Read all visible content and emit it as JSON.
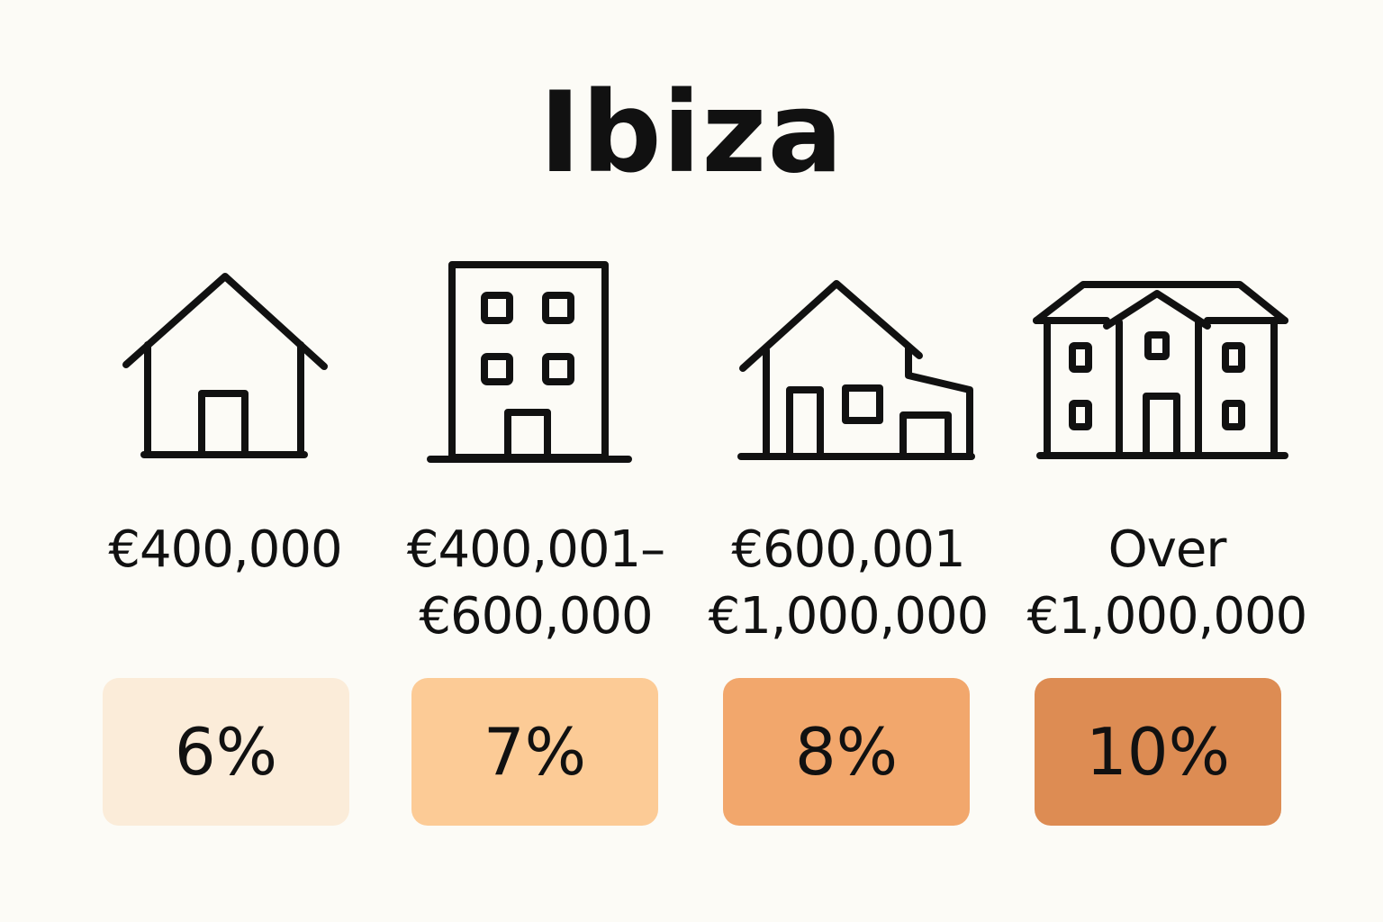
{
  "title": "Ibiza",
  "tiers": [
    {
      "icon": "house-icon",
      "price_lines": [
        "€400,000"
      ],
      "rate": "6%",
      "rate_color": "#fbecd9"
    },
    {
      "icon": "apartment-building-icon",
      "price_lines": [
        "€400,001–",
        "€600,000"
      ],
      "rate": "7%",
      "rate_color": "#fccb96"
    },
    {
      "icon": "villa-icon",
      "price_lines": [
        "€600,001",
        "€1,000,000"
      ],
      "rate": "8%",
      "rate_color": "#f2a76c"
    },
    {
      "icon": "mansion-icon",
      "price_lines": [
        "Over",
        "€1,000,000"
      ],
      "rate": "10%",
      "rate_color": "#dd8c53"
    }
  ]
}
